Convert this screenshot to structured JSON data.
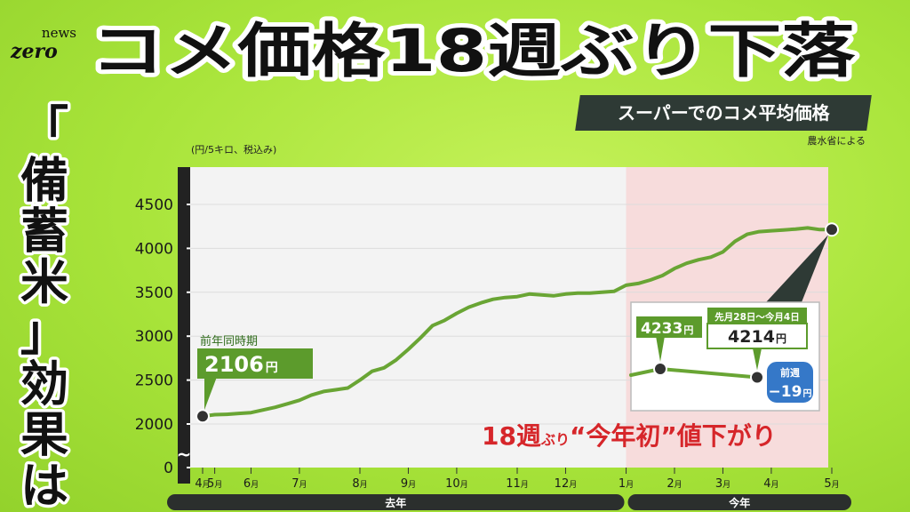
{
  "brand": {
    "line1": "news",
    "line2": "zero"
  },
  "headline": "コメ価格18週ぶり下落",
  "sidebar_caption": "「備蓄米」効果は",
  "subtitle": "スーパーでのコメ平均価格",
  "source": "農水省による",
  "unit_label": "(円/5キロ、税込み)",
  "colors": {
    "background": "#a8e43a",
    "line": "#69a534",
    "this_year_shade": "#f7dcdc",
    "callout_green": "#5c9b2c",
    "callout_blue": "#3578c8",
    "annotation_red": "#d6262a",
    "dark_bar": "#2b2f2d"
  },
  "chart_data": {
    "type": "line",
    "ylim": [
      0,
      4500
    ],
    "y_ticks": [
      0,
      2000,
      2500,
      3000,
      3500,
      4000,
      4500
    ],
    "y_axis_break": "~",
    "x_ticks": [
      {
        "week": 0,
        "label": "4月"
      },
      {
        "week": 1,
        "label": "5月"
      },
      {
        "week": 4,
        "label": "6月"
      },
      {
        "week": 8,
        "label": "7月"
      },
      {
        "week": 13,
        "label": "8月"
      },
      {
        "week": 17,
        "label": "9月"
      },
      {
        "week": 21,
        "label": "10月"
      },
      {
        "week": 26,
        "label": "11月"
      },
      {
        "week": 30,
        "label": "12月"
      },
      {
        "week": 35,
        "label": "1月"
      },
      {
        "week": 39,
        "label": "2月"
      },
      {
        "week": 43,
        "label": "3月"
      },
      {
        "week": 47,
        "label": "4月"
      },
      {
        "week": 52,
        "label": "5月"
      }
    ],
    "period_labels": [
      {
        "label": "去年",
        "from_week": 0,
        "to_week": 35
      },
      {
        "label": "今年",
        "from_week": 35,
        "to_week": 52
      }
    ],
    "x": [
      0,
      1,
      2,
      3,
      4,
      5,
      6,
      7,
      8,
      9,
      10,
      11,
      12,
      13,
      14,
      15,
      16,
      17,
      18,
      19,
      20,
      21,
      22,
      23,
      24,
      25,
      26,
      27,
      28,
      29,
      30,
      31,
      32,
      33,
      34,
      35,
      36,
      37,
      38,
      39,
      40,
      41,
      42,
      43,
      44,
      45,
      46,
      47,
      48,
      49,
      50,
      51,
      52
    ],
    "values": [
      2088,
      2106,
      2110,
      2120,
      2130,
      2160,
      2190,
      2230,
      2270,
      2330,
      2370,
      2390,
      2410,
      2500,
      2600,
      2640,
      2730,
      2850,
      2980,
      3120,
      3180,
      3260,
      3330,
      3380,
      3420,
      3440,
      3450,
      3480,
      3470,
      3460,
      3480,
      3490,
      3490,
      3500,
      3510,
      3580,
      3600,
      3640,
      3690,
      3770,
      3830,
      3870,
      3900,
      3960,
      4080,
      4160,
      4190,
      4200,
      4210,
      4220,
      4233,
      4214,
      4214
    ],
    "callouts": [
      {
        "label": "前年同時期",
        "value": "2106",
        "unit": "円"
      }
    ],
    "inset": {
      "points": [
        {
          "label": "4233",
          "unit": "円"
        },
        {
          "period": "先月28日～今月4日",
          "label": "4214",
          "unit": "円"
        }
      ],
      "change": {
        "label": "前週",
        "value": "−19",
        "unit": "円"
      }
    },
    "annotation": {
      "num": "18",
      "word": "週",
      "small": "ぶり",
      "quote": "“今年初”値下がり"
    }
  }
}
